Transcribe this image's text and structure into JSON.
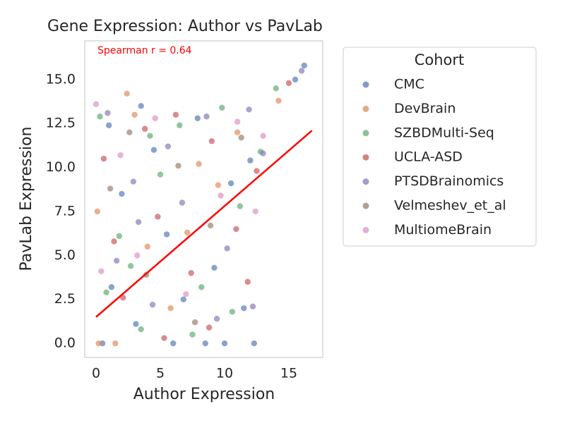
{
  "chart_data": {
    "type": "scatter",
    "title": "Gene Expression: Author vs PavLab",
    "x_label": "Author Expression",
    "y_label": "PavLab Expression",
    "annotation": "Spearman r = 0.64",
    "annotation_color": "#ff0000",
    "legend_title": "Cohort",
    "legend_position": "outside-right",
    "grid": false,
    "xlim": [
      -0.88,
      17.64
    ],
    "ylim": [
      -0.8,
      17.2
    ],
    "xticks": [
      0,
      5,
      10,
      15
    ],
    "yticks": [
      {
        "value": 0,
        "label": "0.0"
      },
      2.5,
      {
        "value": 5,
        "label": "5.0"
      },
      7.5,
      {
        "value": 10,
        "label": "10.0"
      },
      12.5,
      {
        "value": 15,
        "label": "15.0"
      }
    ],
    "trend_line": {
      "x": [
        0,
        16.8
      ],
      "y": [
        1.5,
        12.1
      ],
      "color": "#ff0000"
    },
    "series": [
      {
        "name": "CMC",
        "color": "#4c72b0",
        "x": [
          0.5,
          1.2,
          2.0,
          3.1,
          4.5,
          5.5,
          6.8,
          7.9,
          9.2,
          10.5,
          11.5,
          12.3,
          8.5,
          3.5,
          15.5,
          16.2,
          1.0,
          6.0,
          10.0,
          12.0
        ],
        "y": [
          0,
          3.2,
          8.5,
          1.1,
          11.0,
          6.2,
          2.5,
          12.8,
          4.3,
          9.1,
          2.0,
          0,
          0,
          13.5,
          15.0,
          15.8,
          12.4,
          0,
          0,
          10.4
        ]
      },
      {
        "name": "DevBrain",
        "color": "#dd8452",
        "x": [
          0.2,
          2.4,
          4.0,
          7.1,
          9.5,
          14.2,
          1.5,
          5.8,
          11.0,
          3.0,
          8.0,
          0.1
        ],
        "y": [
          0,
          14.2,
          5.5,
          6.3,
          9.0,
          13.8,
          0,
          2.0,
          12.0,
          13.0,
          10.2,
          7.5
        ]
      },
      {
        "name": "SZBDMulti-Seq",
        "color": "#55a868",
        "x": [
          0.3,
          1.8,
          3.5,
          5.0,
          6.5,
          8.2,
          9.8,
          11.2,
          12.8,
          2.7,
          7.5,
          10.6,
          4.2,
          14.0,
          0.8
        ],
        "y": [
          12.9,
          6.1,
          0.8,
          9.6,
          12.4,
          3.2,
          13.4,
          7.8,
          10.9,
          4.4,
          0.5,
          1.8,
          11.8,
          14.5,
          2.9
        ]
      },
      {
        "name": "UCLA-ASD",
        "color": "#c44e52",
        "x": [
          0.6,
          2.1,
          4.8,
          6.2,
          7.4,
          9.0,
          10.9,
          12.5,
          3.8,
          8.8,
          11.8,
          15.0,
          1.4,
          5.3
        ],
        "y": [
          10.5,
          2.6,
          7.2,
          13.0,
          4.0,
          11.5,
          6.5,
          9.8,
          12.2,
          0.9,
          3.5,
          14.8,
          5.8,
          0.3
        ]
      },
      {
        "name": "PTSDBrainomics",
        "color": "#8172b3",
        "x": [
          0.9,
          2.9,
          4.4,
          6.7,
          8.6,
          10.2,
          11.9,
          13.0,
          1.6,
          5.6,
          9.4,
          16.0,
          3.3,
          12.2
        ],
        "y": [
          13.1,
          9.2,
          2.2,
          8.0,
          12.9,
          5.4,
          13.3,
          10.8,
          4.7,
          11.2,
          1.4,
          15.5,
          6.9,
          2.1
        ]
      },
      {
        "name": "Velmeshev_et_al",
        "color": "#937860",
        "x": [
          1.1,
          3.9,
          6.4,
          8.9,
          11.3,
          2.6,
          7.7
        ],
        "y": [
          8.8,
          3.9,
          10.1,
          6.7,
          11.7,
          12.0,
          1.2
        ]
      },
      {
        "name": "MultiomeBrain",
        "color": "#da8bc3",
        "x": [
          0.0,
          1.9,
          4.6,
          7.0,
          9.7,
          12.4,
          3.2,
          11.0,
          0.4,
          13.0
        ],
        "y": [
          13.6,
          10.7,
          12.8,
          2.8,
          8.4,
          7.5,
          5.0,
          12.6,
          4.1,
          11.8
        ]
      }
    ]
  }
}
